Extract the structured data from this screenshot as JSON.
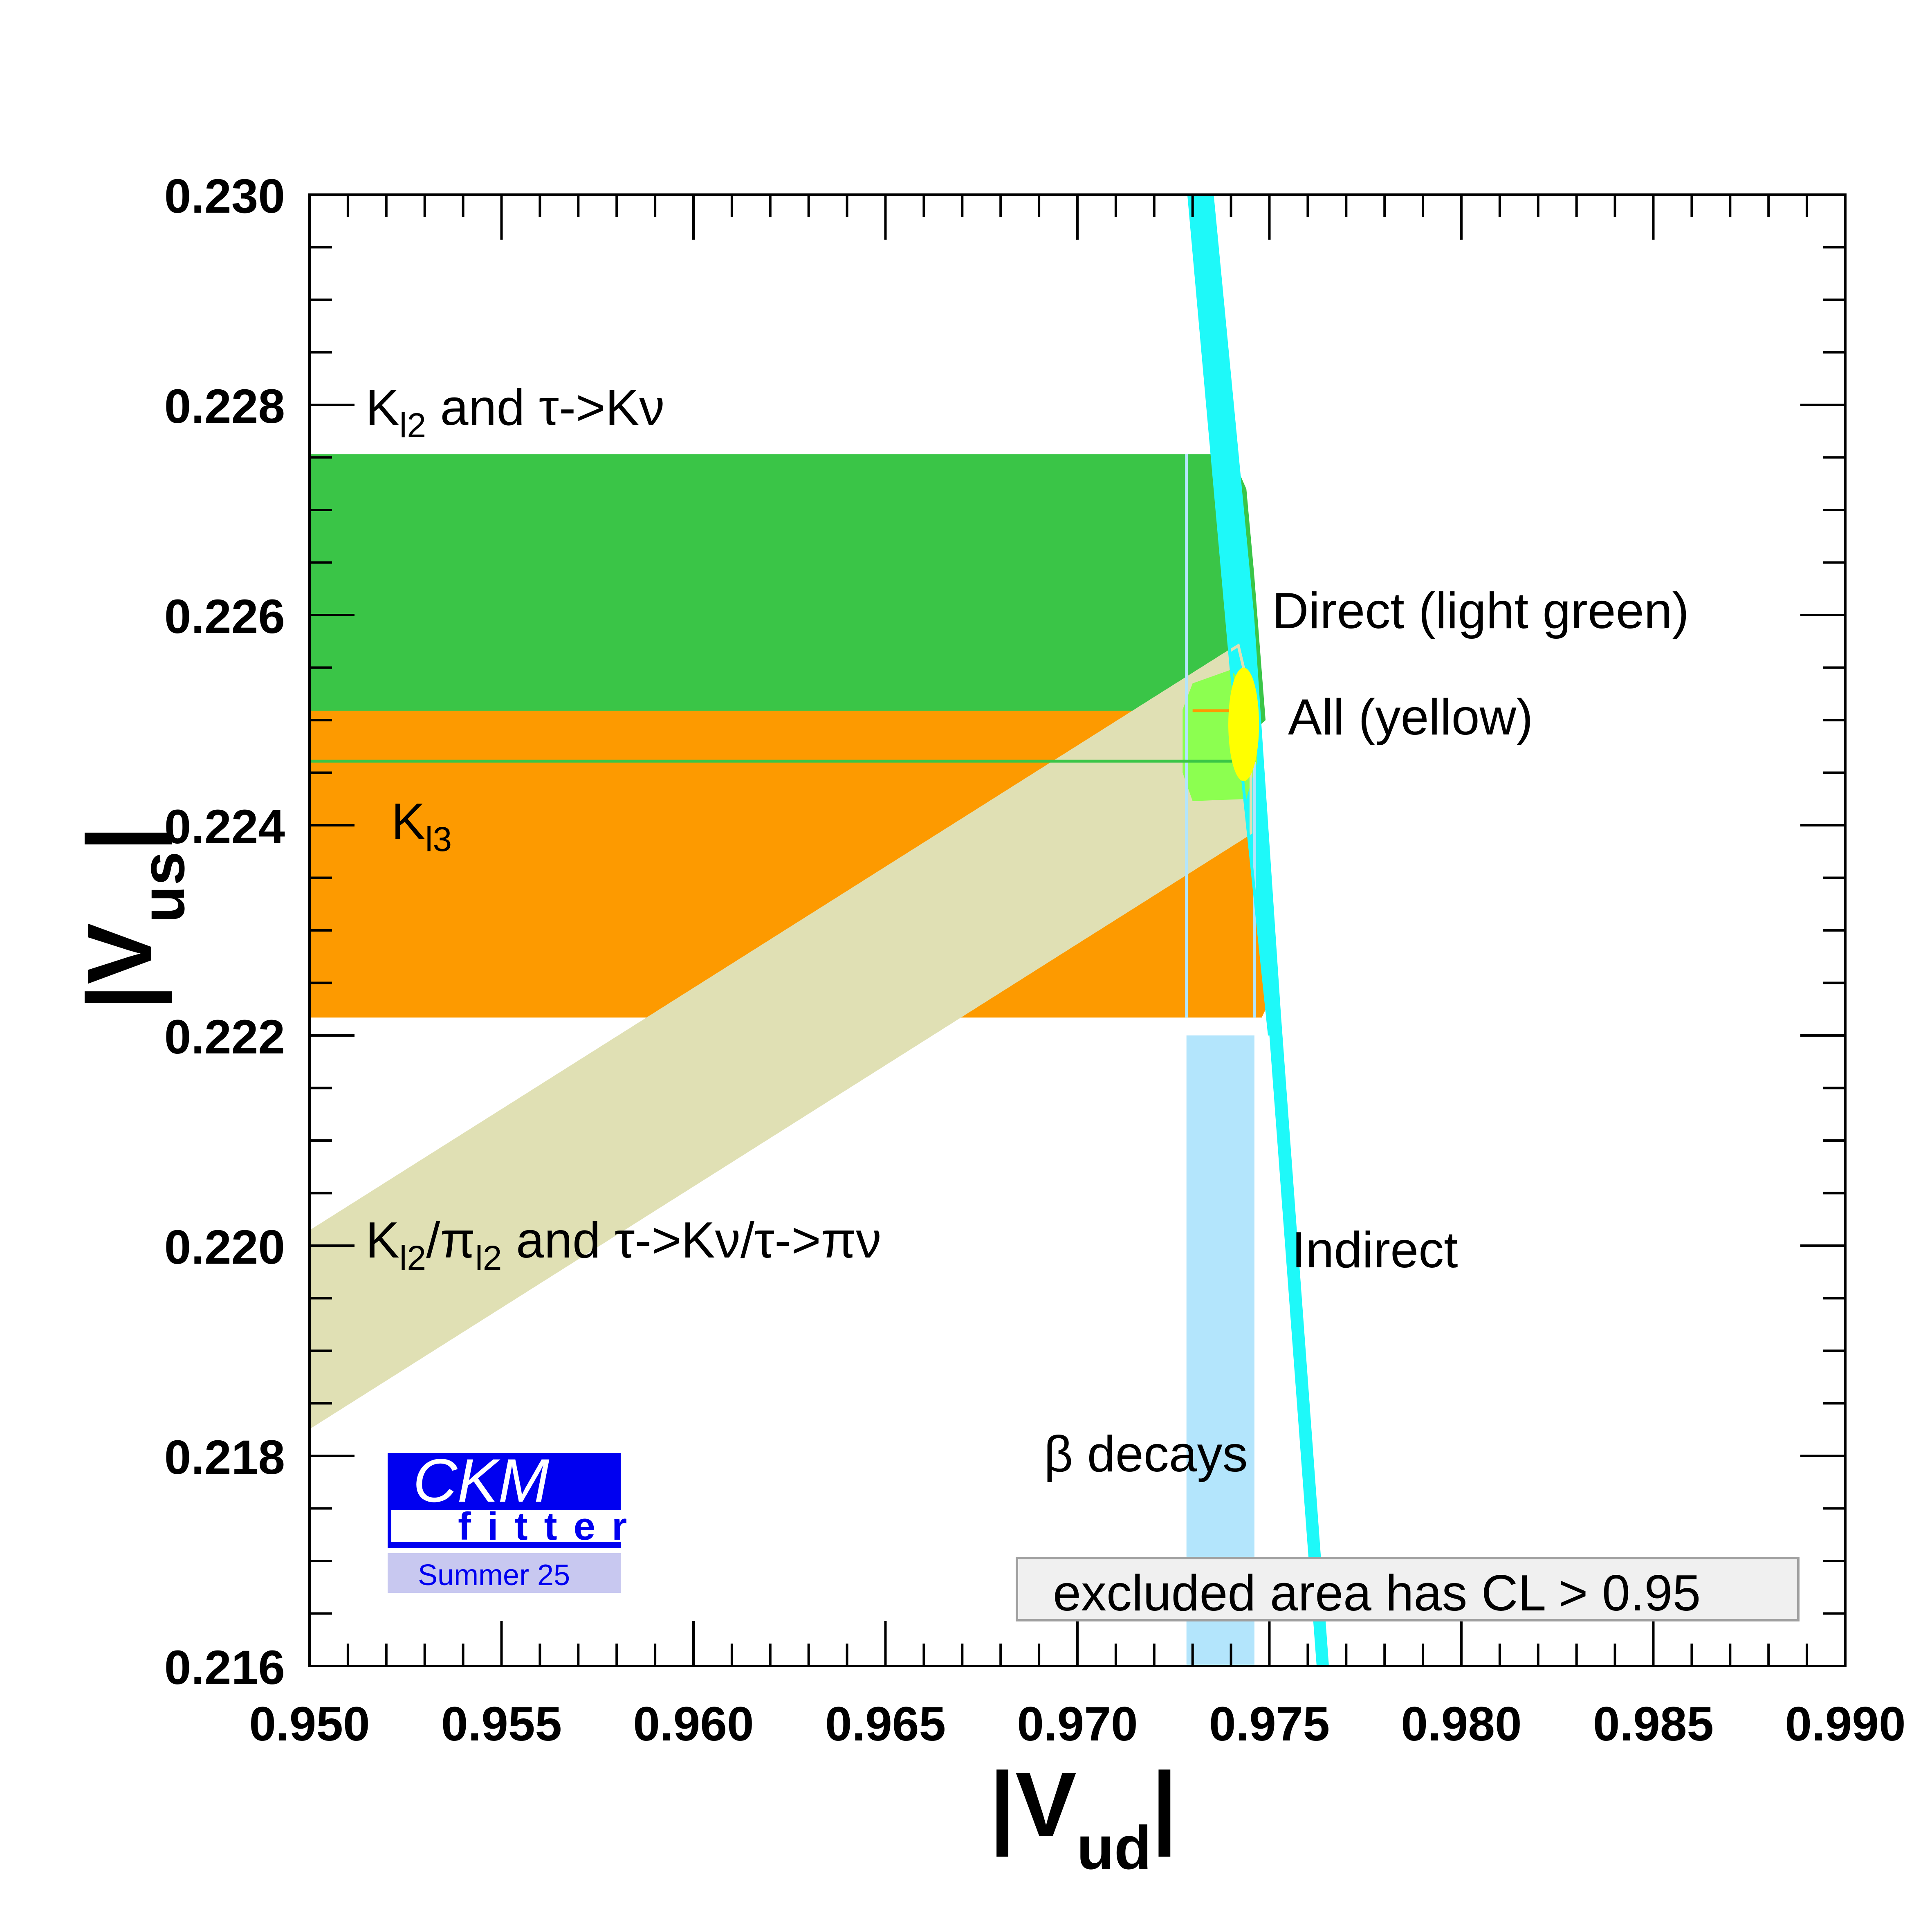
{
  "chart_data": {
    "type": "area",
    "title": "",
    "xlabel": {
      "main": "|V",
      "sub": "ud",
      "end": "|"
    },
    "ylabel": {
      "main": "|V",
      "sub": "us",
      "end": "|"
    },
    "xlim": [
      0.95,
      0.99
    ],
    "ylim": [
      0.216,
      0.23
    ],
    "x_ticks": [
      "0.950",
      "0.955",
      "0.960",
      "0.965",
      "0.970",
      "0.975",
      "0.980",
      "0.985",
      "0.990"
    ],
    "y_ticks": [
      "0.216",
      "0.218",
      "0.220",
      "0.222",
      "0.224",
      "0.226",
      "0.228",
      "0.230"
    ],
    "grid": false,
    "regions": [
      {
        "id": "kl2",
        "color": "#3ac547",
        "polygon": [
          [
            0.95,
            0.22461
          ],
          [
            0.9737,
            0.22461
          ],
          [
            0.9749,
            0.225
          ],
          [
            0.9746,
            0.2264
          ],
          [
            0.9744,
            0.2272
          ],
          [
            0.974,
            0.22753
          ],
          [
            0.95,
            0.22753
          ]
        ]
      },
      {
        "id": "kl3",
        "color": "#fd9a00",
        "polygon": [
          [
            0.95,
            0.22217
          ],
          [
            0.9748,
            0.22217
          ],
          [
            0.9751,
            0.2224
          ],
          [
            0.9749,
            0.224
          ],
          [
            0.9745,
            0.22509
          ],
          [
            0.95,
            0.22509
          ]
        ]
      },
      {
        "id": "beta",
        "color": "#b3e5fc",
        "polygon": [
          [
            0.97284,
            0.216
          ],
          [
            0.97461,
            0.216
          ],
          [
            0.97461,
            0.222
          ],
          [
            0.97284,
            0.222
          ]
        ]
      },
      {
        "id": "kl2pil2",
        "color": "#e0e0b4",
        "polygon": [
          [
            0.95,
            0.22013
          ],
          [
            0.97419,
            0.22571
          ],
          [
            0.97452,
            0.2252
          ],
          [
            0.97452,
            0.22393
          ],
          [
            0.95,
            0.21827
          ]
        ]
      },
      {
        "id": "indirect",
        "color": "#1ef9f9",
        "polygon": [
          [
            0.9729,
            0.23
          ],
          [
            0.97355,
            0.23
          ],
          [
            0.9746,
            0.226
          ],
          [
            0.9753,
            0.2222
          ],
          [
            0.97655,
            0.216
          ],
          [
            0.97623,
            0.216
          ],
          [
            0.975,
            0.222
          ],
          [
            0.974,
            0.2255
          ]
        ]
      },
      {
        "id": "direct",
        "color": "#8cff50",
        "polygon": [
          [
            0.973,
            0.22535
          ],
          [
            0.974,
            0.22548
          ],
          [
            0.97462,
            0.2252
          ],
          [
            0.97468,
            0.2246
          ],
          [
            0.9744,
            0.22425
          ],
          [
            0.973,
            0.22423
          ],
          [
            0.97274,
            0.2245
          ],
          [
            0.97274,
            0.2251
          ]
        ]
      },
      {
        "id": "all",
        "color": "#ffff00",
        "ellipse": {
          "cx": 0.97433,
          "cy": 0.22496,
          "rx": 0.0004,
          "ry": 0.00054
        }
      }
    ],
    "outlines": [
      {
        "id": "kl2pil2-outline",
        "color": "#e0e0b4",
        "points": [
          [
            0.95,
            0.22013
          ],
          [
            0.97419,
            0.22571
          ],
          [
            0.97452,
            0.2252
          ],
          [
            0.97452,
            0.22393
          ],
          [
            0.95,
            0.21827
          ]
        ]
      },
      {
        "id": "beta-outline",
        "color": "#b3e5fc",
        "points": [
          [
            0.97284,
            0.22217
          ],
          [
            0.97284,
            0.22753
          ]
        ]
      },
      {
        "id": "beta-outline-2",
        "color": "#b3e5fc",
        "points": [
          [
            0.97461,
            0.22217
          ],
          [
            0.97461,
            0.2246
          ]
        ]
      },
      {
        "id": "indirect-outline",
        "color": "#1ef9f9",
        "points": [
          [
            0.9729,
            0.23
          ],
          [
            0.974,
            0.2255
          ],
          [
            0.975,
            0.222
          ]
        ]
      },
      {
        "id": "kl2-lower-edge",
        "color": "#3ac547",
        "points": [
          [
            0.95,
            0.22461
          ],
          [
            0.9742,
            0.22461
          ]
        ]
      },
      {
        "id": "kl3-upper-edge",
        "color": "#fd9a00",
        "points": [
          [
            0.973,
            0.22509
          ],
          [
            0.974,
            0.22509
          ]
        ]
      }
    ],
    "annotations": {
      "kl2": {
        "a": "K",
        "sub": "l2",
        "b": " and τ->Kν"
      },
      "direct": "Direct (light green)",
      "all": "All (yellow)",
      "kl3": {
        "a": "K",
        "sub": "l3"
      },
      "ratio": {
        "a": "K",
        "sub1": "l2",
        "b": "/π",
        "sub2": "l2",
        "c": " and τ->Kν/τ->πν"
      },
      "indirect": "Indirect",
      "beta": "β decays"
    },
    "legend": "excluded area has CL > 0.95"
  },
  "logo": {
    "top": "CKM",
    "bottom": "fitter",
    "edition": "Summer 25",
    "color": "#0000f0",
    "edition_bg": "#c8c8f0"
  }
}
